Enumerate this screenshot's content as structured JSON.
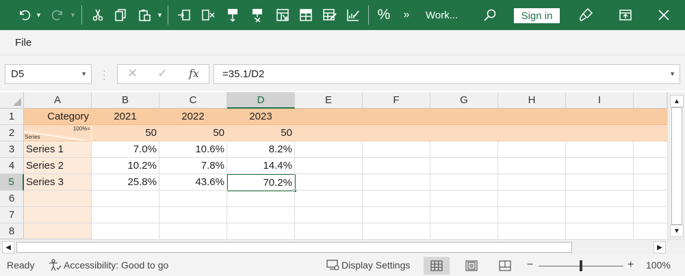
{
  "ribbon": {
    "title": "Work...",
    "signin_label": "Sign in",
    "icons": [
      "undo-icon",
      "redo-icon",
      "cut-icon",
      "copy-icon",
      "paste-icon",
      "insert-cells-icon",
      "delete-cells-icon",
      "insert-column-icon",
      "delete-column-icon",
      "format-table-icon",
      "table-icon",
      "format-cells-icon",
      "conditional-format-icon",
      "percent-icon",
      "more-icon",
      "search-icon",
      "brush-icon",
      "maximize-icon",
      "close-icon"
    ],
    "percent_glyph": "%",
    "more_glyph": "»"
  },
  "menu": {
    "file_label": "File"
  },
  "formula_bar": {
    "name_box": "D5",
    "fx_label": "fx",
    "formula": "=35.1/D2"
  },
  "columns": [
    "A",
    "B",
    "C",
    "D",
    "E",
    "F",
    "G",
    "H",
    "I"
  ],
  "active_column": "D",
  "rows": [
    "1",
    "2",
    "3",
    "4",
    "5",
    "6",
    "7",
    "8"
  ],
  "active_row": "5",
  "sheet": {
    "r1": {
      "a": "Category",
      "b": "2021",
      "c": "2022",
      "d": "2023"
    },
    "r2": {
      "a_top": "100%=",
      "a_bottom": "Series",
      "b": "50",
      "c": "50",
      "d": "50"
    },
    "r3": {
      "a": "Series 1",
      "b": "7.0%",
      "c": "10.6%",
      "d": "8.2%"
    },
    "r4": {
      "a": "Series 2",
      "b": "10.2%",
      "c": "7.8%",
      "d": "14.4%"
    },
    "r5": {
      "a": "Series 3",
      "b": "25.8%",
      "c": "43.6%",
      "d": "70.2%"
    }
  },
  "status": {
    "ready": "Ready",
    "accessibility": "Accessibility: Good to go",
    "display_settings": "Display Settings",
    "zoom": "100%",
    "zoom_minus": "−",
    "zoom_plus": "+"
  },
  "colors": {
    "accent": "#217346",
    "header_row_fill": "#f8cba0",
    "subheader_fill": "#fcdcc0",
    "category_col_fill": "#fdeadb"
  }
}
